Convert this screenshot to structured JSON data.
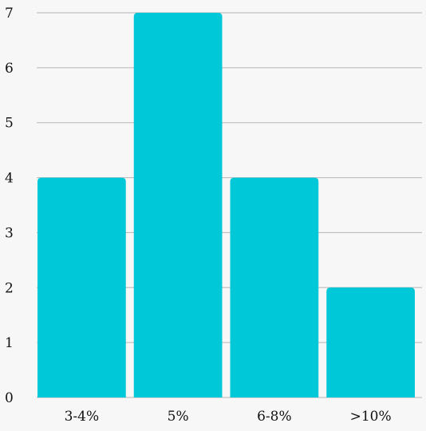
{
  "chart_data": {
    "type": "bar",
    "title": "",
    "xlabel": "",
    "ylabel": "",
    "categories": [
      "3-4%",
      "5%",
      "6-8%",
      ">10%"
    ],
    "values": [
      4,
      7,
      4,
      2
    ],
    "ylim": [
      0,
      7
    ],
    "yticks": [
      "0",
      "1",
      "2",
      "3",
      "4",
      "5",
      "6",
      "7"
    ],
    "grid": true,
    "legend": "none",
    "bar_color": "#00c8d8",
    "grid_color": "#b5b5b5",
    "background": "#f7f7f7"
  }
}
